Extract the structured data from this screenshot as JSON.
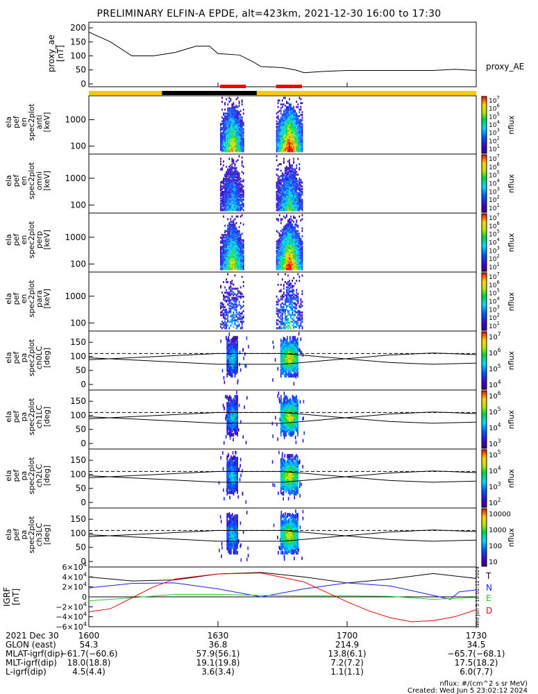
{
  "title": "PRELIMINARY ELFIN-A EPDE, alt=423km, 2021-12-30 16:00 to 17:30",
  "time_ticks": [
    "1600",
    "1630",
    "1700",
    "1730"
  ],
  "colors": {
    "orbit_sunlit": "#f5cc00",
    "orbit_shadow": "#000000",
    "science_zone": "#ee0000",
    "igrf_T": "#000000",
    "igrf_N": "#1a1aff",
    "igrf_E": "#22cc22",
    "igrf_D": "#ee0000"
  },
  "chart_data": [
    {
      "type": "line",
      "panel": "proxy_ae",
      "ylabel": "proxy_ae\n[nT]",
      "yticks": [
        "200",
        "150",
        "100",
        "50",
        "0"
      ],
      "ylim": [
        -10,
        220
      ],
      "series": [
        {
          "name": "proxy_AE",
          "points": [
            [
              0,
              185
            ],
            [
              5,
              150
            ],
            [
              10,
              100
            ],
            [
              15,
              100
            ],
            [
              20,
              112
            ],
            [
              25,
              135
            ],
            [
              28,
              135
            ],
            [
              30,
              108
            ],
            [
              35,
              103
            ],
            [
              38,
              80
            ],
            [
              40,
              62
            ],
            [
              45,
              58
            ],
            [
              48,
              50
            ],
            [
              50,
              40
            ],
            [
              55,
              45
            ],
            [
              60,
              48
            ],
            [
              70,
              48
            ],
            [
              80,
              48
            ],
            [
              85,
              52
            ],
            [
              90,
              48
            ]
          ]
        }
      ],
      "legend": "proxy_AE"
    },
    {
      "type": "heatmap",
      "panel": "energy-spectrograms",
      "science_zones_min": [
        [
          30.5,
          36.5
        ],
        [
          43.5,
          49.5
        ]
      ],
      "orbit_shadow_min": [
        17,
        39
      ],
      "panels": [
        {
          "ylabel": [
            "ela",
            "pef",
            "en",
            "spec2plot",
            "anti",
            "[keV]"
          ],
          "yticks": [
            "1000",
            "100"
          ],
          "scale": "log",
          "cbar_ticks": [
            "10^7",
            "10^6",
            "10^5",
            "10^4",
            "10^3",
            "10^2",
            "10^1"
          ],
          "cbar_label": "nflux"
        },
        {
          "ylabel": [
            "ela",
            "pef",
            "en",
            "spec2plot",
            "omni",
            "[keV]"
          ],
          "yticks": [
            "1000",
            "100"
          ],
          "scale": "log",
          "cbar_ticks": [
            "10^7",
            "10^6",
            "10^5",
            "10^4",
            "10^3",
            "10^2",
            "10^1"
          ],
          "cbar_label": "nflux"
        },
        {
          "ylabel": [
            "ela",
            "pef",
            "en",
            "spec2plot",
            "perp",
            "[keV]"
          ],
          "yticks": [
            "1000",
            "100"
          ],
          "scale": "log",
          "cbar_ticks": [
            "10^7",
            "10^6",
            "10^5",
            "10^4",
            "10^3",
            "10^2",
            "10^1"
          ],
          "cbar_label": "nflux"
        },
        {
          "ylabel": [
            "ela",
            "pef",
            "en",
            "spec2plot",
            "para",
            "[keV]"
          ],
          "yticks": [
            "1000",
            "100"
          ],
          "scale": "log",
          "cbar_ticks": [
            "10^7",
            "10^6",
            "10^5",
            "10^4",
            "10^3",
            "10^2",
            "10^1"
          ],
          "cbar_label": "nflux"
        }
      ]
    },
    {
      "type": "heatmap",
      "panel": "pitch-angle-spectrograms",
      "panels": [
        {
          "ylabel": [
            "ela",
            "pef",
            "pa",
            "spec2plot",
            "ch0LC",
            "[deg]"
          ],
          "yticks": [
            "150",
            "100",
            "50",
            "0"
          ],
          "cbar_ticks": [
            "10^7",
            "10^6",
            "10^5",
            "10^4"
          ],
          "cbar_label": "nflux"
        },
        {
          "ylabel": [
            "ela",
            "pef",
            "pa",
            "spec2plot",
            "ch1LC",
            "[deg]"
          ],
          "yticks": [
            "150",
            "100",
            "50",
            "0"
          ],
          "cbar_ticks": [
            "10^6",
            "10^5",
            "10^4",
            "10^3"
          ],
          "cbar_label": "nflux"
        },
        {
          "ylabel": [
            "ela",
            "pef",
            "pa",
            "spec2plot",
            "ch2LC",
            "[deg]"
          ],
          "yticks": [
            "150",
            "100",
            "50",
            "0"
          ],
          "cbar_ticks": [
            "10^5",
            "10^4",
            "10^3",
            "10^2"
          ],
          "cbar_label": "nflux"
        },
        {
          "ylabel": [
            "ela",
            "pef",
            "pa",
            "spec2plot",
            "ch3LC",
            "[deg]"
          ],
          "yticks": [
            "150",
            "100",
            "50",
            "0"
          ],
          "cbar_ticks": [
            "10000",
            "1000",
            "100",
            "10"
          ],
          "cbar_label": "nflux"
        }
      ],
      "loss_cone_deg": [
        [
          0,
          95
        ],
        [
          30,
          72
        ],
        [
          45,
          72
        ],
        [
          70,
          105
        ],
        [
          80,
          112
        ],
        [
          90,
          106
        ]
      ],
      "anti_loss_cone_deg": [
        [
          0,
          88
        ],
        [
          30,
          110
        ],
        [
          45,
          110
        ],
        [
          70,
          78
        ],
        [
          80,
          72
        ],
        [
          90,
          76
        ]
      ]
    },
    {
      "type": "line",
      "panel": "igrf",
      "ylabel": "IGRF\n[nT]",
      "yticks": [
        "6×10^4",
        "4×10^4",
        "2×10^4",
        "0",
        "−2×10^4",
        "−4×10^4",
        "−6×10^4"
      ],
      "ylim": [
        -60000,
        60000
      ],
      "stamp": "Wed Jun  5 16:02:12 2024",
      "series": [
        {
          "name": "T",
          "points": [
            [
              0,
              40000
            ],
            [
              10,
              32000
            ],
            [
              20,
              34000
            ],
            [
              30,
              46000
            ],
            [
              40,
              49000
            ],
            [
              50,
              40000
            ],
            [
              60,
              28000
            ],
            [
              70,
              36000
            ],
            [
              80,
              47000
            ],
            [
              90,
              37000
            ]
          ]
        },
        {
          "name": "N",
          "points": [
            [
              0,
              18000
            ],
            [
              10,
              27000
            ],
            [
              20,
              28000
            ],
            [
              30,
              16000
            ],
            [
              40,
              0
            ],
            [
              50,
              16000
            ],
            [
              60,
              28000
            ],
            [
              70,
              22000
            ],
            [
              80,
              3000
            ],
            [
              84,
              -5000
            ],
            [
              86,
              10000
            ],
            [
              90,
              14000
            ]
          ]
        },
        {
          "name": "E",
          "points": [
            [
              0,
              -8000
            ],
            [
              10,
              -2000
            ],
            [
              20,
              5000
            ],
            [
              30,
              5000
            ],
            [
              40,
              3000
            ],
            [
              50,
              2000
            ],
            [
              60,
              2000
            ],
            [
              70,
              1000
            ],
            [
              80,
              -5000
            ],
            [
              90,
              -1000
            ]
          ]
        },
        {
          "name": "D",
          "points": [
            [
              0,
              -30000
            ],
            [
              5,
              -24000
            ],
            [
              10,
              -2000
            ],
            [
              15,
              20000
            ],
            [
              20,
              36000
            ],
            [
              30,
              46000
            ],
            [
              40,
              48000
            ],
            [
              50,
              30000
            ],
            [
              55,
              10000
            ],
            [
              60,
              -10000
            ],
            [
              65,
              -28000
            ],
            [
              70,
              -42000
            ],
            [
              75,
              -50000
            ],
            [
              80,
              -48000
            ],
            [
              85,
              -40000
            ],
            [
              90,
              -26000
            ]
          ]
        }
      ]
    }
  ],
  "footer": {
    "labels": [
      "2021 Dec 30",
      "GLON (east)",
      "MLAT-igrf(dip)",
      "MLT-igrf(dip)",
      "L-igrf(dip)"
    ],
    "cols": [
      [
        "1600",
        "54.3",
        "−61.7(−60.6)",
        "18.0(18.8)",
        "4.5(4.4)"
      ],
      [
        "1630",
        "36.8",
        "57.9(56.1)",
        "19.1(19.8)",
        "3.6(3.4)"
      ],
      [
        "1700",
        "214.9",
        "13.8(6.1)",
        "7.2(7.2)",
        "1.1(1.1)"
      ],
      [
        "1730",
        "34.5",
        "−65.7(−68.1)",
        "17.5(18.2)",
        "6.0(7.7)"
      ]
    ],
    "units": "nflux: #/(cm^2 s sr MeV)",
    "created": "Created: Wed Jun  5 23:02:12 2024"
  }
}
